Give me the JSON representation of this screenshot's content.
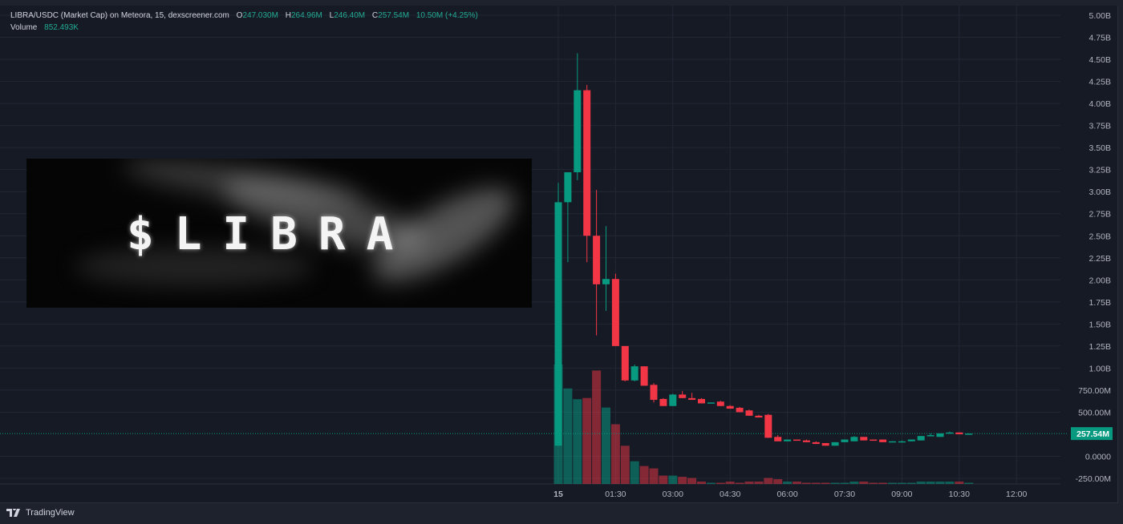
{
  "legend": {
    "symbol": "LIBRA/USDC (Market Cap) on Meteora, 15, dexscreener.com",
    "open_label": "O",
    "open": "247.030M",
    "high_label": "H",
    "high": "264.96M",
    "low_label": "L",
    "low": "246.40M",
    "close_label": "C",
    "close": "257.54M",
    "change": "10.50M (+4.25%)",
    "volume_label": "Volume",
    "volume": "852.493K"
  },
  "logo_image": {
    "text": "$LIBRA"
  },
  "footer": {
    "brand": "TradingView"
  },
  "colors": {
    "up": "#089981",
    "down": "#f23645",
    "background": "#161a25",
    "grid": "#232734"
  },
  "chart_data": {
    "type": "candlestick",
    "interval": "15",
    "y_ticks": [
      "5.00B",
      "4.75B",
      "4.50B",
      "4.25B",
      "4.00B",
      "3.75B",
      "3.50B",
      "3.25B",
      "3.00B",
      "2.75B",
      "2.50B",
      "2.25B",
      "2.00B",
      "1.75B",
      "1.50B",
      "1.25B",
      "1.00B",
      "750.00M",
      "500.00M",
      "0.0000",
      "-250.00M"
    ],
    "y_tick_values": [
      5.0,
      4.75,
      4.5,
      4.25,
      4.0,
      3.75,
      3.5,
      3.25,
      3.0,
      2.75,
      2.5,
      2.25,
      2.0,
      1.75,
      1.5,
      1.25,
      1.0,
      0.75,
      0.5,
      0.0,
      -0.25
    ],
    "ylim_billions": [
      -0.25,
      5.0
    ],
    "x_ticks": [
      {
        "label": "15",
        "hour": 0
      },
      {
        "label": "01:30",
        "hour": 1.5
      },
      {
        "label": "03:00",
        "hour": 3
      },
      {
        "label": "04:30",
        "hour": 4.5
      },
      {
        "label": "06:00",
        "hour": 6
      },
      {
        "label": "07:30",
        "hour": 7.5
      },
      {
        "label": "09:00",
        "hour": 9
      },
      {
        "label": "10:30",
        "hour": 10.5
      },
      {
        "label": "12:00",
        "hour": 12
      }
    ],
    "last_price_label": "257.54M",
    "last_price_billions": 0.2575,
    "ohlc_billions": [
      [
        0.12,
        3.1,
        0.12,
        2.88
      ],
      [
        2.88,
        3.22,
        2.2,
        3.22
      ],
      [
        3.22,
        4.57,
        3.13,
        4.15
      ],
      [
        4.15,
        4.21,
        2.2,
        2.5
      ],
      [
        2.5,
        3.02,
        1.37,
        1.95
      ],
      [
        1.95,
        2.61,
        1.65,
        2.01
      ],
      [
        2.01,
        2.07,
        1.25,
        1.25
      ],
      [
        1.25,
        1.25,
        0.85,
        0.86
      ],
      [
        0.86,
        1.04,
        0.85,
        1.02
      ],
      [
        1.02,
        1.02,
        0.8,
        0.8
      ],
      [
        0.81,
        0.83,
        0.61,
        0.64
      ],
      [
        0.65,
        0.66,
        0.57,
        0.57
      ],
      [
        0.57,
        0.71,
        0.57,
        0.7
      ],
      [
        0.7,
        0.74,
        0.66,
        0.66
      ],
      [
        0.66,
        0.72,
        0.64,
        0.64
      ],
      [
        0.65,
        0.66,
        0.6,
        0.6
      ],
      [
        0.6,
        0.61,
        0.6,
        0.61
      ],
      [
        0.62,
        0.63,
        0.57,
        0.57
      ],
      [
        0.57,
        0.58,
        0.54,
        0.54
      ],
      [
        0.55,
        0.56,
        0.5,
        0.5
      ],
      [
        0.52,
        0.53,
        0.46,
        0.46
      ],
      [
        0.46,
        0.47,
        0.44,
        0.44
      ],
      [
        0.47,
        0.48,
        0.21,
        0.21
      ],
      [
        0.22,
        0.24,
        0.17,
        0.17
      ],
      [
        0.17,
        0.19,
        0.17,
        0.19
      ],
      [
        0.19,
        0.19,
        0.18,
        0.18
      ],
      [
        0.18,
        0.19,
        0.16,
        0.16
      ],
      [
        0.16,
        0.17,
        0.14,
        0.14
      ],
      [
        0.15,
        0.15,
        0.12,
        0.12
      ],
      [
        0.12,
        0.16,
        0.12,
        0.16
      ],
      [
        0.16,
        0.19,
        0.16,
        0.19
      ],
      [
        0.17,
        0.23,
        0.17,
        0.22
      ],
      [
        0.22,
        0.22,
        0.18,
        0.18
      ],
      [
        0.19,
        0.19,
        0.18,
        0.18
      ],
      [
        0.19,
        0.19,
        0.16,
        0.16
      ],
      [
        0.16,
        0.17,
        0.16,
        0.17
      ],
      [
        0.17,
        0.18,
        0.17,
        0.17
      ],
      [
        0.17,
        0.19,
        0.17,
        0.19
      ],
      [
        0.18,
        0.23,
        0.18,
        0.23
      ],
      [
        0.23,
        0.26,
        0.23,
        0.24
      ],
      [
        0.22,
        0.26,
        0.22,
        0.26
      ],
      [
        0.26,
        0.28,
        0.26,
        0.27
      ],
      [
        0.27,
        0.27,
        0.25,
        0.25
      ],
      [
        0.25,
        0.26,
        0.25,
        0.2575
      ]
    ],
    "volume_relative": [
      100,
      80,
      71,
      72,
      95,
      64,
      50,
      32,
      19,
      15,
      13,
      7,
      7,
      6,
      5,
      2,
      1,
      1,
      2,
      1,
      2,
      2,
      5,
      4,
      2,
      2,
      1,
      1,
      1,
      1,
      1,
      2,
      2,
      1,
      1,
      1,
      1,
      1,
      2,
      2,
      2,
      2,
      2,
      1
    ]
  }
}
